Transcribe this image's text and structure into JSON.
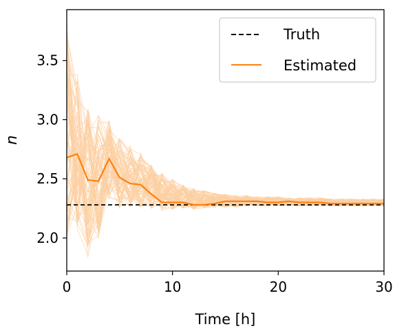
{
  "chart_data": {
    "type": "line",
    "xlabel": "Time [h]",
    "ylabel": "n",
    "xlim": [
      0,
      30
    ],
    "ylim": [
      1.72,
      3.93
    ],
    "x_ticks": [
      0,
      10,
      20,
      30
    ],
    "y_ticks": [
      2.0,
      2.5,
      3.0,
      3.5
    ],
    "x_tick_labels": [
      "0",
      "10",
      "20",
      "30"
    ],
    "y_tick_labels": [
      "2.0",
      "2.5",
      "3.0",
      "3.5"
    ],
    "grid": false,
    "legend_position": "top-right",
    "colors": {
      "truth": "#000000",
      "estimated": "#ff7f0e",
      "ensemble": "#fdd0a2"
    },
    "legend": [
      {
        "label": "Truth",
        "style": "dashed",
        "color": "#000000"
      },
      {
        "label": "Estimated",
        "style": "solid",
        "color": "#ff7f0e"
      }
    ],
    "series": [
      {
        "name": "Truth",
        "style": "dashed",
        "x": [
          0,
          30
        ],
        "y": [
          2.28,
          2.28
        ]
      },
      {
        "name": "Estimated",
        "style": "solid",
        "x": [
          0,
          1,
          2,
          3,
          4,
          5,
          6,
          7,
          8,
          9,
          10,
          11,
          12,
          13,
          14,
          15,
          16,
          17,
          18,
          19,
          20,
          21,
          22,
          23,
          24,
          25,
          26,
          27,
          28,
          29,
          30
        ],
        "y": [
          2.68,
          2.71,
          2.49,
          2.48,
          2.67,
          2.51,
          2.46,
          2.45,
          2.37,
          2.3,
          2.3,
          2.3,
          2.28,
          2.28,
          2.29,
          2.31,
          2.31,
          2.31,
          2.31,
          2.3,
          2.3,
          2.31,
          2.3,
          2.3,
          2.3,
          2.29,
          2.29,
          2.29,
          2.29,
          2.29,
          2.29
        ]
      }
    ],
    "ensemble": {
      "count": 80,
      "x": [
        0,
        1,
        2,
        3,
        4,
        5,
        6,
        7,
        8,
        9,
        10,
        11,
        12,
        13,
        14,
        15,
        16,
        17,
        18,
        19,
        20,
        21,
        22,
        23,
        24,
        25,
        26,
        27,
        28,
        29,
        30
      ],
      "y_min": [
        2.0,
        2.05,
        1.83,
        2.0,
        2.3,
        2.24,
        2.26,
        2.26,
        2.24,
        2.23,
        2.24,
        2.25,
        2.24,
        2.25,
        2.26,
        2.26,
        2.26,
        2.27,
        2.27,
        2.27,
        2.27,
        2.27,
        2.27,
        2.27,
        2.27,
        2.27,
        2.27,
        2.27,
        2.27,
        2.27,
        2.27
      ],
      "y_max": [
        3.82,
        3.4,
        3.1,
        3.05,
        3.0,
        2.85,
        2.78,
        2.72,
        2.62,
        2.55,
        2.5,
        2.45,
        2.42,
        2.4,
        2.38,
        2.37,
        2.36,
        2.36,
        2.35,
        2.35,
        2.35,
        2.34,
        2.34,
        2.34,
        2.34,
        2.33,
        2.33,
        2.33,
        2.33,
        2.33,
        2.33
      ]
    }
  }
}
